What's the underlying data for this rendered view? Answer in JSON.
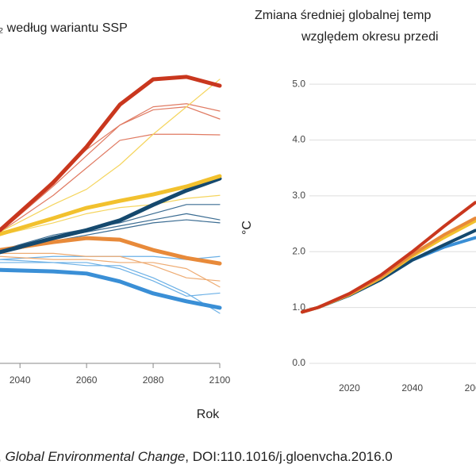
{
  "charts": {
    "left": {
      "type": "line",
      "title": "₂ według wariantu SSP",
      "x_label": "Rok",
      "x": [
        2034,
        2050,
        2060,
        2070,
        2080,
        2090,
        2100
      ],
      "xlim": [
        2034,
        2100
      ],
      "xticks": [
        2040,
        2060,
        2080,
        2100
      ],
      "ylim": [
        0,
        100
      ],
      "grid": false,
      "series": [
        {
          "color": "#e07a62",
          "line_width": 1.2,
          "values": [
            43,
            58,
            68,
            78,
            84,
            85,
            82.6
          ]
        },
        {
          "color": "#e07a62",
          "line_width": 1.2,
          "values": [
            43,
            55,
            64,
            73,
            75,
            75,
            74.8
          ]
        },
        {
          "color": "#e07a62",
          "line_width": 1.2,
          "values": [
            43,
            60,
            70,
            78,
            83,
            84,
            80
          ]
        },
        {
          "color": "#f5d55e",
          "line_width": 1.2,
          "values": [
            43,
            52,
            57,
            65,
            75,
            84,
            93
          ]
        },
        {
          "color": "#f5d55e",
          "line_width": 1.2,
          "values": [
            42,
            46,
            49,
            51,
            52,
            54,
            55
          ]
        },
        {
          "color": "#3b6c92",
          "line_width": 1.2,
          "values": [
            37,
            42,
            44,
            46,
            49,
            52,
            52
          ]
        },
        {
          "color": "#3b6c92",
          "line_width": 1.2,
          "values": [
            37,
            41,
            43,
            45,
            47,
            49,
            47
          ]
        },
        {
          "color": "#3b6c92",
          "line_width": 1.2,
          "values": [
            36,
            40,
            42,
            44,
            46,
            47,
            46
          ]
        },
        {
          "color": "#6bb0e6",
          "line_width": 1.2,
          "values": [
            34,
            35,
            35,
            35,
            35,
            34,
            35
          ]
        },
        {
          "color": "#6bb0e6",
          "line_width": 1.2,
          "values": [
            33,
            33,
            32,
            32,
            28,
            23,
            16.4
          ]
        },
        {
          "color": "#6bb0e6",
          "line_width": 1.2,
          "values": [
            34,
            33,
            33,
            31,
            27,
            22,
            23
          ]
        },
        {
          "color": "#eeab72",
          "line_width": 1.2,
          "values": [
            36,
            36,
            35,
            35,
            32,
            28,
            27
          ]
        },
        {
          "color": "#eeab72",
          "line_width": 1.2,
          "values": [
            35,
            34,
            34,
            33,
            33,
            31,
            25
          ]
        },
        {
          "color": "#3a8fd6",
          "line_width": 5,
          "values": [
            30.6,
            30.1,
            29.4,
            26.8,
            22.9,
            20.3,
            18.2
          ]
        },
        {
          "color": "#e88a3a",
          "line_width": 5,
          "values": [
            37.1,
            39.7,
            41,
            40.5,
            37.1,
            34.5,
            32.7
          ]
        },
        {
          "color": "#15496e",
          "line_width": 5,
          "values": [
            36.4,
            41,
            43.6,
            46.8,
            51.9,
            56.6,
            60.5
          ]
        },
        {
          "color": "#f2c12e",
          "line_width": 5,
          "values": [
            42.3,
            47.5,
            50.9,
            53.2,
            55.3,
            57.9,
            61.3
          ]
        },
        {
          "color": "#c9371e",
          "line_width": 5,
          "values": [
            43.6,
            59.2,
            70.9,
            84.7,
            93,
            93.8,
            90.9
          ]
        }
      ]
    },
    "right": {
      "type": "line",
      "title_lines": [
        "Zmiana średniej globalnej temp",
        "względem okresu przedi"
      ],
      "y_label": "°C",
      "x": [
        2005,
        2010,
        2020,
        2030,
        2040,
        2050,
        2060
      ],
      "xlim": [
        2004,
        2060
      ],
      "xticks": [
        2020,
        2040,
        2060
      ],
      "ylim": [
        0,
        5.5
      ],
      "yticks": [
        {
          "value": 0,
          "label": "0.0"
        },
        {
          "value": 1,
          "label": "1.0"
        },
        {
          "value": 2,
          "label": "2.0"
        },
        {
          "value": 3,
          "label": "3.0"
        },
        {
          "value": 4,
          "label": "4.0"
        },
        {
          "value": 5,
          "label": "5.0"
        }
      ],
      "grid": true,
      "series": [
        {
          "color": "#3a8fd6",
          "line_width": 4,
          "values": [
            0.92,
            1.0,
            1.22,
            1.5,
            1.85,
            2.08,
            2.25
          ]
        },
        {
          "color": "#15496e",
          "line_width": 4,
          "values": [
            0.92,
            1.0,
            1.22,
            1.5,
            1.85,
            2.12,
            2.38
          ]
        },
        {
          "color": "#f2c12e",
          "line_width": 4,
          "values": [
            0.92,
            1.0,
            1.23,
            1.53,
            1.92,
            2.25,
            2.55
          ]
        },
        {
          "color": "#e88a3a",
          "line_width": 4,
          "values": [
            0.92,
            1.0,
            1.24,
            1.55,
            1.95,
            2.3,
            2.6
          ]
        },
        {
          "color": "#c9371e",
          "line_width": 4,
          "values": [
            0.92,
            1.0,
            1.25,
            1.58,
            2.0,
            2.45,
            2.88
          ]
        }
      ]
    }
  },
  "footer": {
    "parts": [
      ",",
      "Global Environmental Change",
      ", DOI:110.1016/j.gloenvcha.2016.0"
    ]
  }
}
